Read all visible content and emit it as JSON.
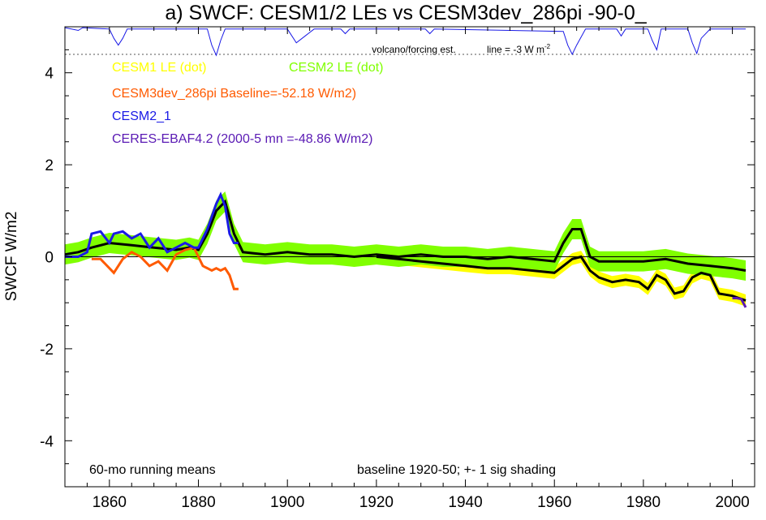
{
  "chart_data": {
    "type": "line",
    "title": "a) SWCF: CESM1/2 LEs vs CESM3dev_286pi -90-0_",
    "ylabel": "SWCF W/m2",
    "xlabel": "",
    "xlim": [
      1850,
      2005
    ],
    "ylim": [
      -5,
      5
    ],
    "x_ticks": [
      1860,
      1880,
      1900,
      1920,
      1940,
      1960,
      1980,
      2000
    ],
    "y_ticks": [
      -4,
      -2,
      0,
      2,
      4
    ],
    "zero_line": 0,
    "volcano_baseline": 4.4,
    "annotations": {
      "volcano_label": "volcano/forcing est.",
      "line_label": "line = -3 W m",
      "line_label_sup": "-2",
      "bottom_left": "60-mo running means",
      "bottom_right": "baseline 1920-50; +- 1 sig shading"
    },
    "legend": [
      {
        "label": "CESM1 LE (dot)",
        "color": "#ffff00"
      },
      {
        "label": "CESM2 LE (dot)",
        "color": "#80ff00"
      },
      {
        "label": "CESM3dev_286pi Baseline=-52.18 W/m2)",
        "color": "#ff5a00"
      },
      {
        "label": "CESM2_1",
        "color": "#1a1ae6"
      },
      {
        "label": "CERES-EBAF4.2 (2000-5 mn =-48.86 W/m2)",
        "color": "#5a1ab4"
      }
    ],
    "colors": {
      "cesm1_band": "#ffff00",
      "cesm2_band": "#80ff00",
      "cesm3dev": "#ff5a00",
      "cesm2_1": "#1a1ae6",
      "ceres": "#5a1ab4",
      "ensemble_mean": "#000000",
      "volcano": "#1a1ae6"
    },
    "series": [
      {
        "key": "cesm1_band",
        "x": [
          1920,
          1925,
          1930,
          1935,
          1940,
          1945,
          1950,
          1955,
          1960,
          1962,
          1964,
          1966,
          1968,
          1970,
          1973,
          1976,
          1979,
          1981,
          1983,
          1985,
          1987,
          1989,
          1991,
          1993,
          1995,
          1997,
          2000,
          2003
        ],
        "y": [
          0.0,
          -0.05,
          -0.1,
          -0.15,
          -0.2,
          -0.25,
          -0.25,
          -0.3,
          -0.35,
          -0.2,
          -0.05,
          0.0,
          -0.3,
          -0.45,
          -0.55,
          -0.5,
          -0.55,
          -0.7,
          -0.4,
          -0.5,
          -0.8,
          -0.75,
          -0.45,
          -0.35,
          -0.4,
          -0.8,
          -0.85,
          -0.95
        ],
        "sigma": 0.13
      },
      {
        "key": "cesm2_band",
        "x": [
          1850,
          1853,
          1856,
          1860,
          1865,
          1870,
          1875,
          1878,
          1880,
          1882,
          1884,
          1886,
          1888,
          1890,
          1895,
          1900,
          1905,
          1910,
          1915,
          1920,
          1925,
          1930,
          1935,
          1940,
          1945,
          1950,
          1955,
          1960,
          1962,
          1964,
          1966,
          1968,
          1970,
          1975,
          1980,
          1985,
          1990,
          1995,
          2000,
          2003
        ],
        "y": [
          0.05,
          0.1,
          0.2,
          0.3,
          0.25,
          0.2,
          0.15,
          0.2,
          0.15,
          0.5,
          1.0,
          1.2,
          0.5,
          0.1,
          0.05,
          0.1,
          0.05,
          0.05,
          0.0,
          0.05,
          0.0,
          0.05,
          0.0,
          0.0,
          -0.05,
          0.0,
          -0.05,
          -0.1,
          0.3,
          0.6,
          0.6,
          0.0,
          -0.1,
          -0.1,
          -0.1,
          -0.05,
          -0.15,
          -0.2,
          -0.25,
          -0.3
        ],
        "sigma": 0.22
      },
      {
        "key": "cesm1_mean",
        "x": [
          1920,
          1925,
          1930,
          1935,
          1940,
          1945,
          1950,
          1955,
          1960,
          1962,
          1964,
          1966,
          1968,
          1970,
          1973,
          1976,
          1979,
          1981,
          1983,
          1985,
          1987,
          1989,
          1991,
          1993,
          1995,
          1997,
          2000,
          2003
        ],
        "y": [
          0.0,
          -0.05,
          -0.1,
          -0.15,
          -0.2,
          -0.25,
          -0.25,
          -0.3,
          -0.35,
          -0.2,
          -0.05,
          0.0,
          -0.3,
          -0.45,
          -0.55,
          -0.5,
          -0.55,
          -0.7,
          -0.4,
          -0.5,
          -0.8,
          -0.75,
          -0.45,
          -0.35,
          -0.4,
          -0.8,
          -0.85,
          -0.95
        ]
      },
      {
        "key": "cesm2_mean",
        "x": [
          1850,
          1853,
          1856,
          1860,
          1865,
          1870,
          1875,
          1878,
          1880,
          1882,
          1884,
          1886,
          1888,
          1890,
          1895,
          1900,
          1905,
          1910,
          1915,
          1920,
          1925,
          1930,
          1935,
          1940,
          1945,
          1950,
          1955,
          1960,
          1962,
          1964,
          1966,
          1968,
          1970,
          1975,
          1980,
          1985,
          1990,
          1995,
          2000,
          2003
        ],
        "y": [
          0.05,
          0.1,
          0.2,
          0.3,
          0.25,
          0.2,
          0.15,
          0.2,
          0.15,
          0.5,
          1.0,
          1.2,
          0.5,
          0.1,
          0.05,
          0.1,
          0.05,
          0.05,
          0.0,
          0.05,
          0.0,
          0.05,
          0.0,
          0.0,
          -0.05,
          0.0,
          -0.05,
          -0.1,
          0.3,
          0.6,
          0.6,
          0.0,
          -0.1,
          -0.1,
          -0.1,
          -0.05,
          -0.15,
          -0.2,
          -0.25,
          -0.3
        ]
      },
      {
        "key": "cesm2_1",
        "x": [
          1850,
          1853,
          1855,
          1856,
          1858,
          1860,
          1861,
          1863,
          1865,
          1867,
          1869,
          1871,
          1873,
          1875,
          1877,
          1879,
          1880,
          1882,
          1884,
          1885,
          1886,
          1887,
          1888,
          1889
        ],
        "y": [
          0.0,
          0.0,
          0.1,
          0.5,
          0.55,
          0.3,
          0.5,
          0.55,
          0.4,
          0.5,
          0.2,
          0.4,
          0.1,
          0.2,
          0.3,
          0.2,
          0.2,
          0.6,
          1.15,
          1.35,
          1.1,
          0.5,
          0.3,
          0.3
        ]
      },
      {
        "key": "cesm3dev",
        "x": [
          1856,
          1858,
          1861,
          1863,
          1865,
          1867,
          1869,
          1871,
          1873,
          1875,
          1877,
          1879,
          1881,
          1883,
          1884,
          1885,
          1886,
          1887,
          1888,
          1889
        ],
        "y": [
          -0.05,
          -0.05,
          -0.35,
          -0.05,
          0.1,
          0.0,
          -0.2,
          -0.1,
          -0.3,
          0.05,
          0.15,
          0.2,
          -0.2,
          -0.3,
          -0.25,
          -0.3,
          -0.25,
          -0.4,
          -0.7,
          -0.7
        ]
      },
      {
        "key": "ceres",
        "x": [
          2000,
          2001,
          2002,
          2003
        ],
        "y": [
          -0.9,
          -0.9,
          -0.92,
          -1.1
        ]
      },
      {
        "key": "volcano",
        "x": [
          1850,
          1853,
          1854,
          1860,
          1861,
          1862,
          1863,
          1864,
          1882,
          1883,
          1884,
          1885,
          1886,
          1900,
          1902,
          1904,
          1906,
          1912,
          1913,
          1914,
          1931,
          1932,
          1933,
          1962,
          1963,
          1964,
          1965,
          1967,
          1974,
          1975,
          1976,
          1981,
          1982,
          1983,
          1984,
          1990,
          1991,
          1992,
          1993,
          1995,
          2003
        ],
        "y": [
          4.98,
          4.92,
          4.98,
          4.95,
          4.75,
          4.6,
          4.75,
          4.95,
          4.95,
          4.6,
          4.38,
          4.7,
          4.95,
          4.95,
          4.65,
          4.8,
          4.95,
          4.95,
          4.85,
          4.95,
          4.95,
          4.85,
          4.95,
          4.9,
          4.6,
          4.4,
          4.6,
          4.95,
          4.95,
          4.8,
          4.95,
          4.95,
          4.7,
          4.5,
          4.95,
          4.95,
          4.65,
          4.42,
          4.75,
          4.95,
          4.95
        ]
      }
    ]
  }
}
